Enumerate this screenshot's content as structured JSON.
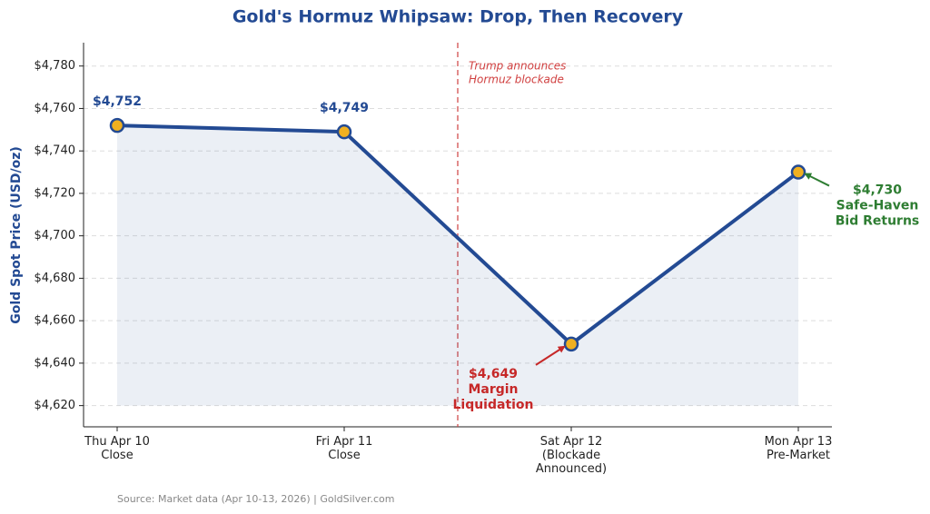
{
  "chart_data": {
    "type": "line",
    "title": "Gold's Hormuz Whipsaw: Drop, Then Recovery",
    "ylabel": "Gold Spot Price (USD/oz)",
    "source": "Source: Market data (Apr 10-13, 2026)  |  GoldSilver.com",
    "categories": [
      [
        "Thu Apr 10",
        "Close"
      ],
      [
        "Fri Apr 11",
        "Close"
      ],
      [
        "Sat Apr 12",
        "(Blockade",
        "Announced)"
      ],
      [
        "Mon Apr 13",
        "Pre-Market"
      ]
    ],
    "series": [
      {
        "color": "#234a93",
        "marker_color": "#f0b020",
        "values": [
          4752,
          4749,
          4649,
          4730
        ],
        "value_labels": [
          "$4,752",
          "$4,749",
          "$4,649",
          "$4,730"
        ]
      }
    ],
    "annotations": [
      {
        "lines": [
          "Trump announces",
          "Hormuz blockade"
        ],
        "color": "#d04040"
      },
      {
        "lines": [
          "Margin",
          "Liquidation"
        ],
        "color": "#c62828"
      },
      {
        "lines": [
          "Safe-Haven",
          "Bid Returns"
        ],
        "color": "#2e7d32"
      }
    ],
    "ylim": [
      4610,
      4791
    ],
    "yticks": [
      {
        "value": 4620,
        "label": "$4,620"
      },
      {
        "value": 4640,
        "label": "$4,640"
      },
      {
        "value": 4660,
        "label": "$4,660"
      },
      {
        "value": 4680,
        "label": "$4,680"
      },
      {
        "value": 4700,
        "label": "$4,700"
      },
      {
        "value": 4720,
        "label": "$4,720"
      },
      {
        "value": 4740,
        "label": "$4,740"
      },
      {
        "value": 4760,
        "label": "$4,760"
      },
      {
        "value": 4780,
        "label": "$4,780"
      }
    ],
    "grid": true
  }
}
